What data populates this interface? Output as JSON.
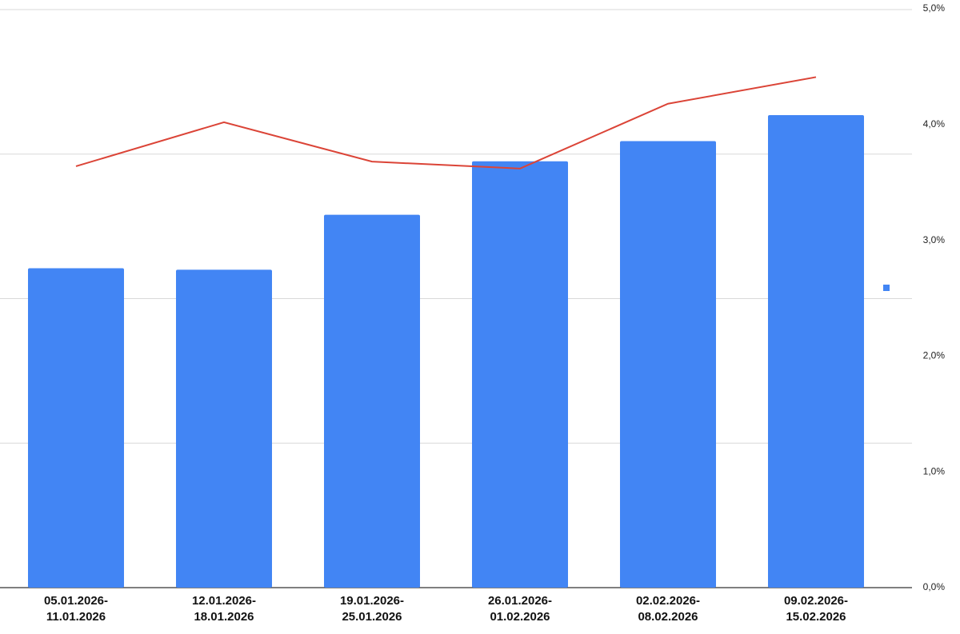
{
  "chart_data": {
    "type": "bar-line",
    "categories": [
      "05.01.2026-11.01.2026",
      "12.01.2026-18.01.2026",
      "19.01.2026-25.01.2026",
      "26.01.2026-01.02.2026",
      "02.02.2026-08.02.2026",
      "09.02.2026-15.02.2026"
    ],
    "series": [
      {
        "type": "bar",
        "color": "#4285f4",
        "values": [
          2.21,
          2.2,
          2.58,
          2.95,
          3.09,
          3.27
        ]
      },
      {
        "type": "line",
        "axis": "y2",
        "color": "#db4437",
        "values": [
          3.64,
          4.02,
          3.68,
          3.62,
          4.18,
          4.41
        ]
      }
    ],
    "ylim": [
      0,
      4
    ],
    "yticks": [
      0,
      1,
      2,
      3,
      4
    ],
    "y_tick_labels": false,
    "y2lim": [
      0,
      5
    ],
    "y2ticks": [
      {
        "value": 0,
        "label": "0,0%"
      },
      {
        "value": 1,
        "label": "1,0%"
      },
      {
        "value": 2,
        "label": "2,0%"
      },
      {
        "value": 3,
        "label": "3,0%"
      },
      {
        "value": 4,
        "label": "4,0%"
      },
      {
        "value": 5,
        "label": "5,0%"
      }
    ],
    "grid": true
  }
}
